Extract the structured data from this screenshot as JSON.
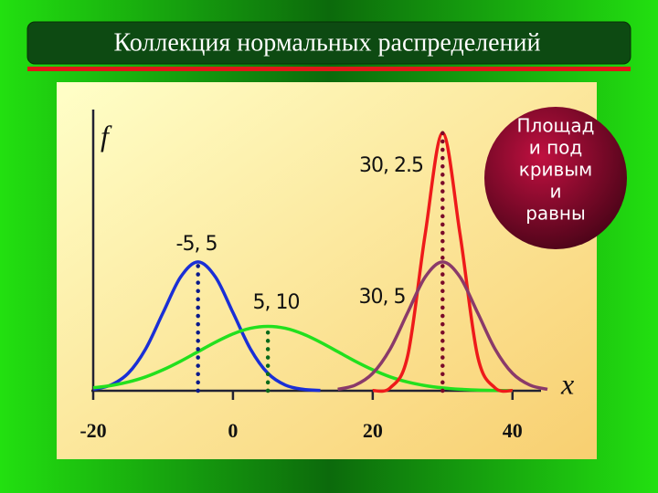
{
  "chart_data": {
    "type": "line",
    "title": "Коллекция нормальных распределений",
    "xlabel": "x",
    "ylabel": "f",
    "x": [
      -20,
      -17.5,
      -15,
      -12.5,
      -10,
      -7.5,
      -5,
      -2.5,
      0,
      2.5,
      5,
      7.5,
      10,
      12.5,
      15,
      17.5,
      20,
      22.5,
      25,
      27.5,
      30,
      32.5,
      35,
      37.5,
      40,
      42.5,
      45
    ],
    "xlim": [
      -20,
      45
    ],
    "xticks": [
      -20,
      0,
      20,
      40
    ],
    "ylim": [
      0,
      0.19
    ],
    "series": [
      {
        "name": "-5, 5",
        "color": "#1a2fd6",
        "marker_color": "#0a1a8a",
        "mean": -5,
        "values": [
          0.0009,
          0.0035,
          0.0108,
          0.0259,
          0.0484,
          0.0704,
          0.0798,
          0.0704,
          0.0484,
          0.0259,
          0.0108,
          0.0035,
          0.0009,
          0.0002,
          null,
          null,
          null,
          null,
          null,
          null,
          null,
          null,
          null,
          null,
          null,
          null,
          null
        ]
      },
      {
        "name": "5, 10",
        "color": "#22e01e",
        "marker_color": "#0a6a1a",
        "mean": 5,
        "values": [
          0.0018,
          0.0032,
          0.0054,
          0.0086,
          0.013,
          0.0183,
          0.0242,
          0.0301,
          0.0352,
          0.0387,
          0.0399,
          0.0387,
          0.0352,
          0.0301,
          0.0242,
          0.0183,
          0.013,
          0.0086,
          0.0054,
          0.0032,
          0.0018,
          0.0009,
          0.0004,
          0.0002,
          0.0001,
          null,
          null
        ]
      },
      {
        "name": "30, 2.5",
        "color": "#ee1a1a",
        "marker_color": "#7a0a2a",
        "mean": 30,
        "values": [
          null,
          null,
          null,
          null,
          null,
          null,
          null,
          null,
          null,
          null,
          null,
          null,
          null,
          null,
          null,
          null,
          0.0001,
          0.0018,
          0.0216,
          0.0968,
          0.1596,
          0.0968,
          0.0216,
          0.0018,
          0.0001,
          null,
          null
        ]
      },
      {
        "name": "30, 5",
        "color": "#8a3a6a",
        "values": [
          null,
          null,
          null,
          null,
          null,
          null,
          null,
          null,
          null,
          null,
          null,
          null,
          null,
          null,
          0.0009,
          0.0035,
          0.0108,
          0.0259,
          0.0484,
          0.0704,
          0.0798,
          0.0704,
          0.0484,
          0.0259,
          0.0108,
          0.0035,
          0.0009
        ]
      }
    ],
    "callout": [
      "Площад",
      "и под",
      "кривым",
      "и",
      "равны"
    ]
  }
}
